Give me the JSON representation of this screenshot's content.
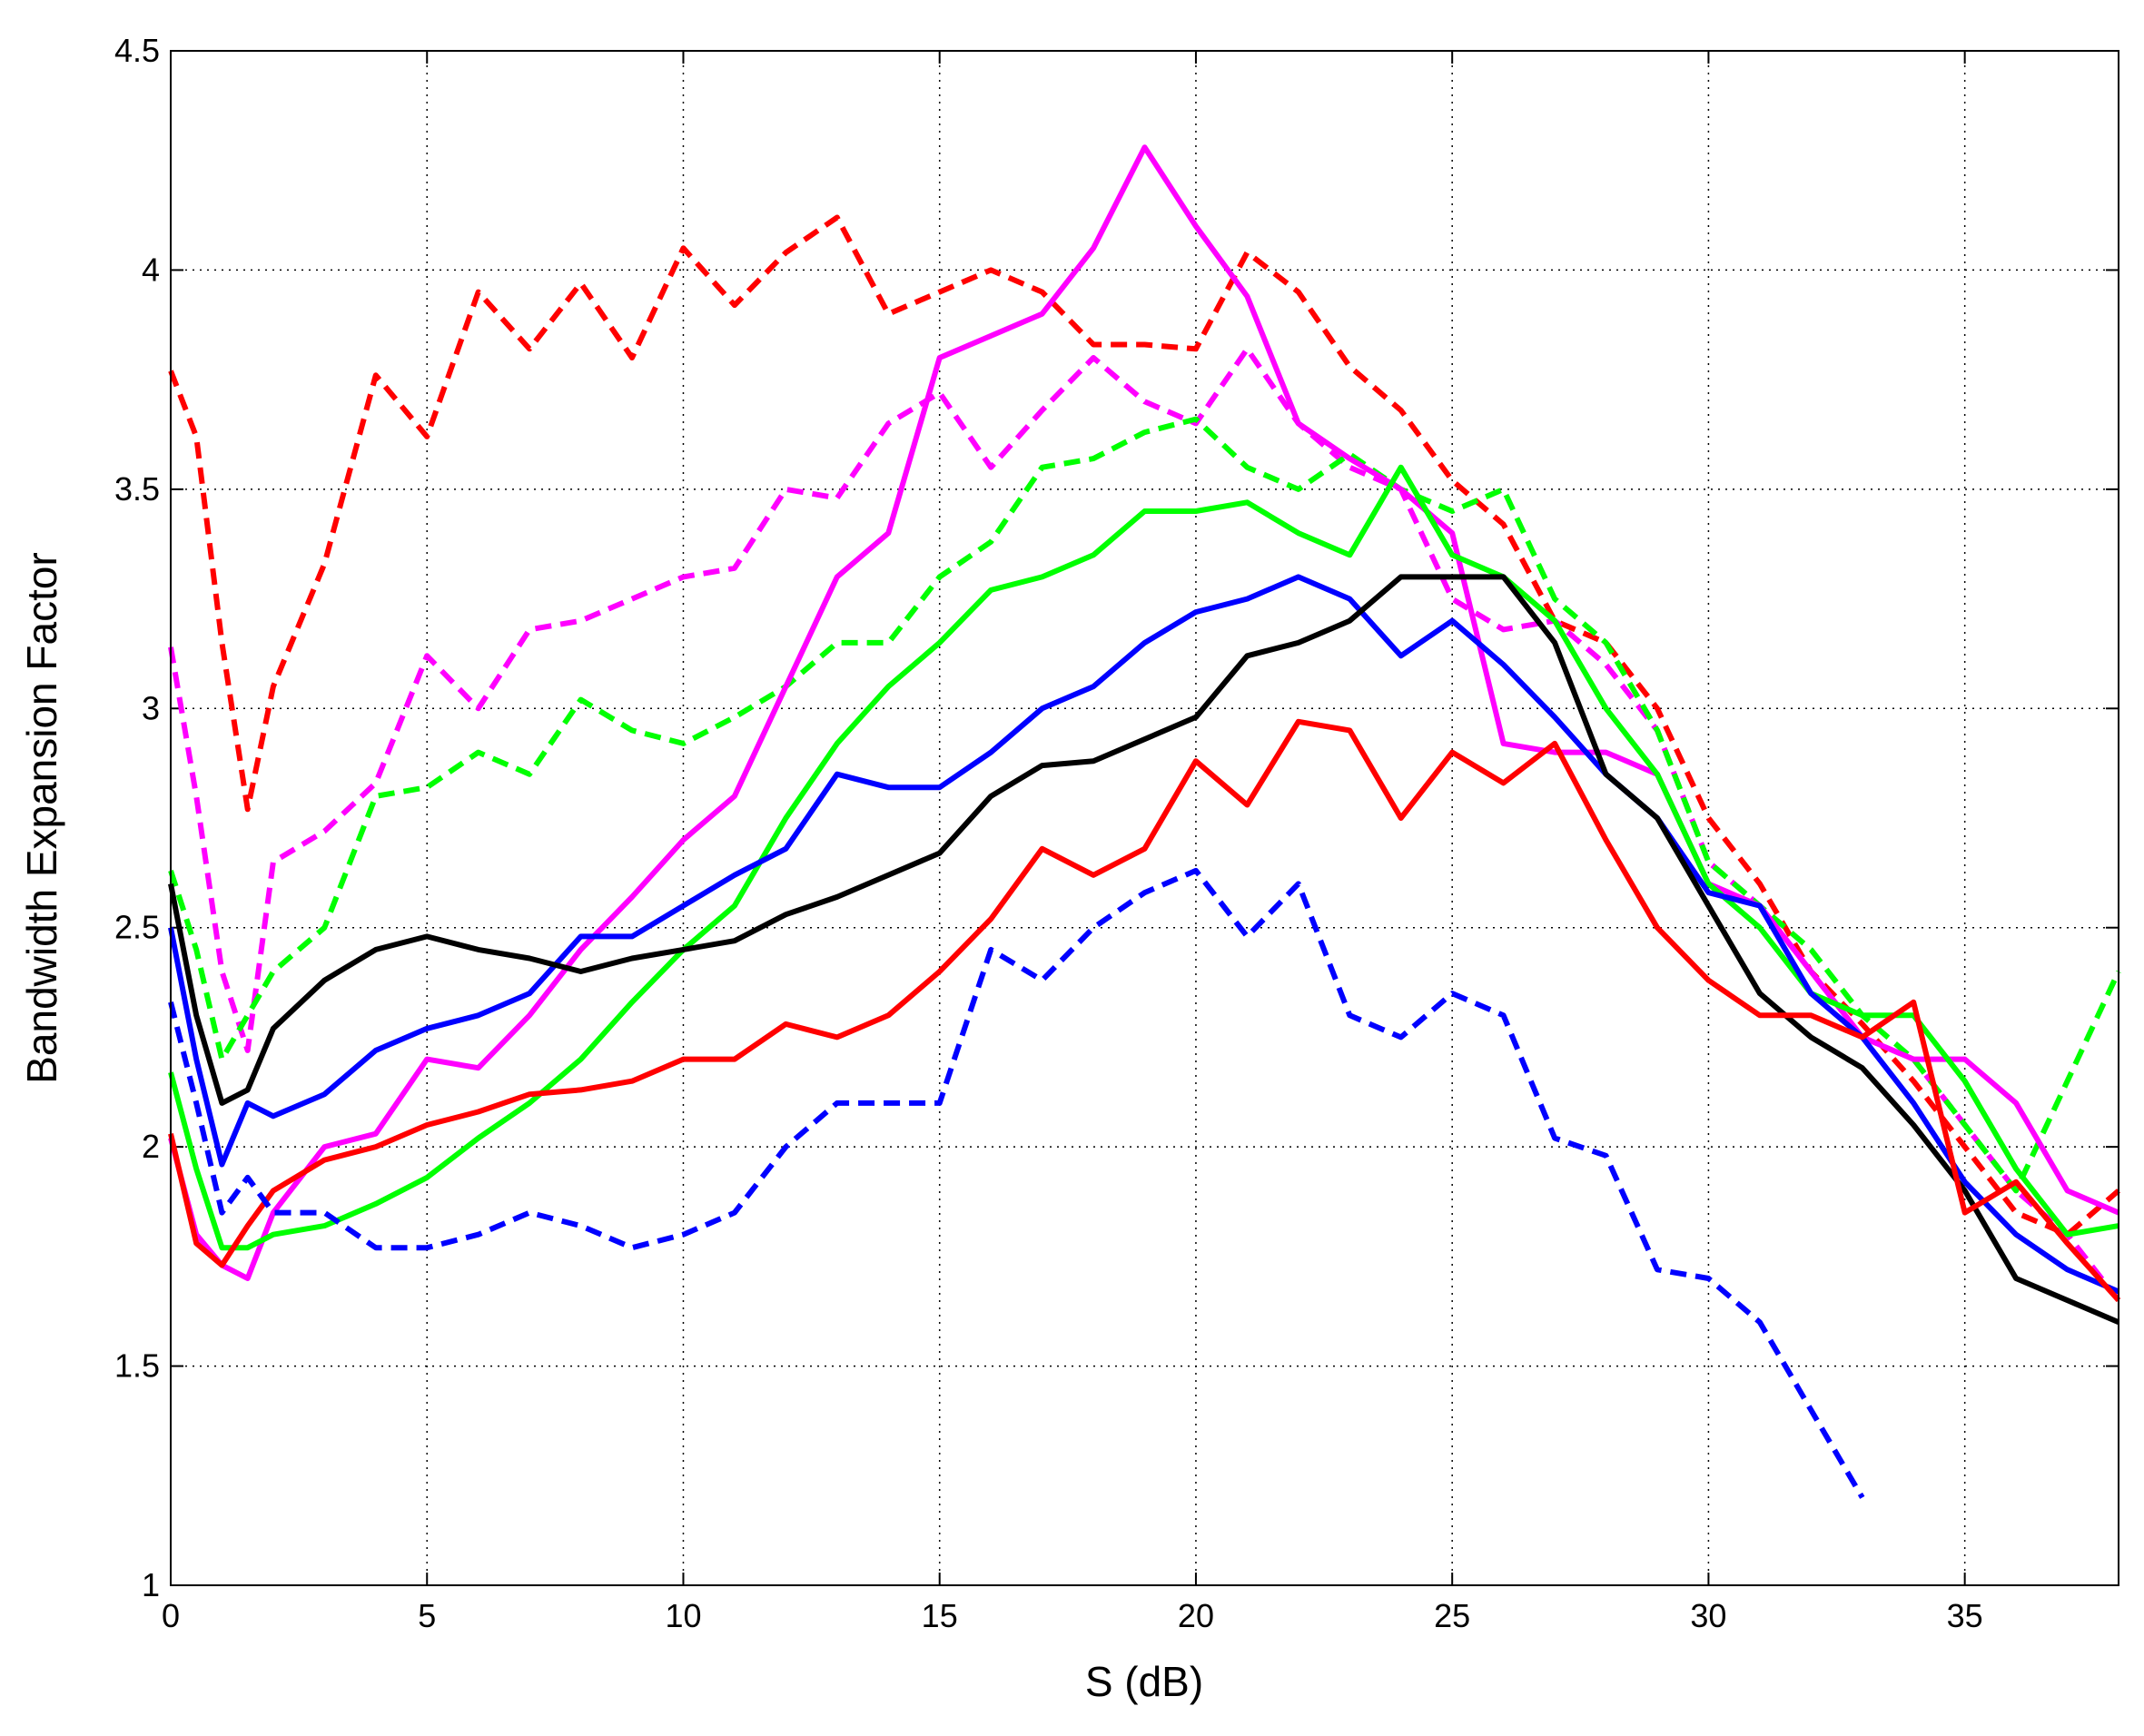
{
  "chart_data": {
    "type": "line",
    "xlabel": "S (dB)",
    "ylabel": "Bandwidth Expansion Factor",
    "x": [
      0,
      0.5,
      1,
      1.5,
      2,
      3,
      4,
      5,
      6,
      7,
      8,
      9,
      10,
      11,
      12,
      13,
      14,
      15,
      16,
      17,
      18,
      19,
      20,
      21,
      22,
      23,
      24,
      25,
      26,
      27,
      28,
      29,
      30,
      31,
      32,
      33,
      34,
      35,
      36,
      37,
      38
    ],
    "xlim": [
      0,
      38
    ],
    "xticks": [
      0,
      5,
      10,
      15,
      20,
      25,
      30,
      35
    ],
    "ylim": [
      1,
      4.5
    ],
    "yticks": [
      1,
      1.5,
      2,
      2.5,
      3,
      3.5,
      4,
      4.5
    ],
    "grid": true,
    "series": [
      {
        "color": "#ff0000",
        "dash": true,
        "values": [
          3.77,
          3.62,
          3.15,
          2.77,
          3.05,
          3.33,
          3.76,
          3.62,
          3.95,
          3.82,
          3.97,
          3.8,
          4.05,
          3.92,
          4.04,
          4.12,
          3.9,
          3.95,
          4.0,
          3.95,
          3.83,
          3.83,
          3.82,
          4.04,
          3.95,
          3.78,
          3.68,
          3.52,
          3.42,
          3.2,
          3.15,
          3.0,
          2.75,
          2.6,
          2.4,
          2.28,
          2.15,
          2.0,
          1.85,
          1.8,
          1.9
        ]
      },
      {
        "color": "#ff00ff",
        "dash": true,
        "values": [
          3.14,
          2.8,
          2.4,
          2.22,
          2.65,
          2.72,
          2.83,
          3.12,
          3.0,
          3.18,
          3.2,
          3.25,
          3.3,
          3.32,
          3.5,
          3.48,
          3.65,
          3.72,
          3.55,
          3.68,
          3.8,
          3.7,
          3.65,
          3.82,
          3.65,
          3.55,
          3.5,
          3.25,
          3.18,
          3.2,
          3.1,
          2.95,
          2.65,
          2.55,
          2.4,
          2.25,
          2.2,
          2.05,
          1.9,
          1.8,
          1.65
        ]
      },
      {
        "color": "#00ff00",
        "dash": true,
        "values": [
          2.63,
          2.45,
          2.2,
          2.3,
          2.4,
          2.5,
          2.8,
          2.82,
          2.9,
          2.85,
          3.02,
          2.95,
          2.92,
          2.98,
          3.05,
          3.15,
          3.15,
          3.3,
          3.38,
          3.55,
          3.57,
          3.63,
          3.66,
          3.55,
          3.5,
          3.58,
          3.5,
          3.45,
          3.5,
          3.25,
          3.15,
          2.95,
          2.65,
          2.55,
          2.45,
          2.3,
          2.2,
          2.05,
          1.9,
          2.15,
          2.4
        ]
      },
      {
        "color": "#ff00ff",
        "dash": false,
        "values": [
          2.02,
          1.8,
          1.73,
          1.7,
          1.85,
          2.0,
          2.03,
          2.2,
          2.18,
          2.3,
          2.45,
          2.57,
          2.7,
          2.8,
          3.05,
          3.3,
          3.4,
          3.8,
          3.85,
          3.9,
          4.05,
          4.28,
          4.1,
          3.94,
          3.65,
          3.57,
          3.5,
          3.4,
          2.92,
          2.9,
          2.9,
          2.85,
          2.6,
          2.55,
          2.4,
          2.25,
          2.2,
          2.2,
          2.1,
          1.9,
          1.85
        ]
      },
      {
        "color": "#00ff00",
        "dash": false,
        "values": [
          2.17,
          1.95,
          1.77,
          1.77,
          1.8,
          1.82,
          1.87,
          1.93,
          2.02,
          2.1,
          2.2,
          2.33,
          2.45,
          2.55,
          2.75,
          2.92,
          3.05,
          3.15,
          3.27,
          3.3,
          3.35,
          3.45,
          3.45,
          3.47,
          3.4,
          3.35,
          3.55,
          3.35,
          3.3,
          3.2,
          3.0,
          2.85,
          2.6,
          2.5,
          2.35,
          2.3,
          2.3,
          2.15,
          1.95,
          1.8,
          1.82
        ]
      },
      {
        "color": "#0000ff",
        "dash": false,
        "values": [
          2.5,
          2.2,
          1.96,
          2.1,
          2.07,
          2.12,
          2.22,
          2.27,
          2.3,
          2.35,
          2.48,
          2.48,
          2.55,
          2.62,
          2.68,
          2.85,
          2.82,
          2.82,
          2.9,
          3.0,
          3.05,
          3.15,
          3.22,
          3.25,
          3.3,
          3.25,
          3.12,
          3.2,
          3.1,
          2.98,
          2.85,
          2.75,
          2.58,
          2.55,
          2.35,
          2.25,
          2.1,
          1.92,
          1.8,
          1.72,
          1.67
        ]
      },
      {
        "color": "#000000",
        "dash": false,
        "values": [
          2.6,
          2.3,
          2.1,
          2.13,
          2.27,
          2.38,
          2.45,
          2.48,
          2.45,
          2.43,
          2.4,
          2.43,
          2.45,
          2.47,
          2.53,
          2.57,
          2.62,
          2.67,
          2.8,
          2.87,
          2.88,
          2.93,
          2.98,
          3.12,
          3.15,
          3.2,
          3.3,
          3.3,
          3.3,
          3.15,
          2.85,
          2.75,
          2.55,
          2.35,
          2.25,
          2.18,
          2.05,
          1.9,
          1.7,
          1.65,
          1.6
        ]
      },
      {
        "color": "#ff0000",
        "dash": false,
        "values": [
          2.03,
          1.78,
          1.73,
          1.82,
          1.9,
          1.97,
          2.0,
          2.05,
          2.08,
          2.12,
          2.13,
          2.15,
          2.2,
          2.2,
          2.28,
          2.25,
          2.3,
          2.4,
          2.52,
          2.68,
          2.62,
          2.68,
          2.88,
          2.78,
          2.97,
          2.95,
          2.75,
          2.9,
          2.83,
          2.92,
          2.7,
          2.5,
          2.38,
          2.3,
          2.3,
          2.25,
          2.33,
          1.85,
          1.92,
          1.78,
          1.65
        ]
      },
      {
        "color": "#0000ff",
        "dash": true,
        "values": [
          2.33,
          2.1,
          1.85,
          1.93,
          1.85,
          1.85,
          1.77,
          1.77,
          1.8,
          1.85,
          1.82,
          1.77,
          1.8,
          1.85,
          2.0,
          2.1,
          2.1,
          2.1,
          2.45,
          2.38,
          2.5,
          2.58,
          2.63,
          2.48,
          2.6,
          2.3,
          2.25,
          2.35,
          2.3,
          2.02,
          1.98,
          1.72,
          1.7,
          1.6,
          1.4,
          1.2,
          null,
          null,
          null,
          null,
          null
        ]
      }
    ]
  }
}
